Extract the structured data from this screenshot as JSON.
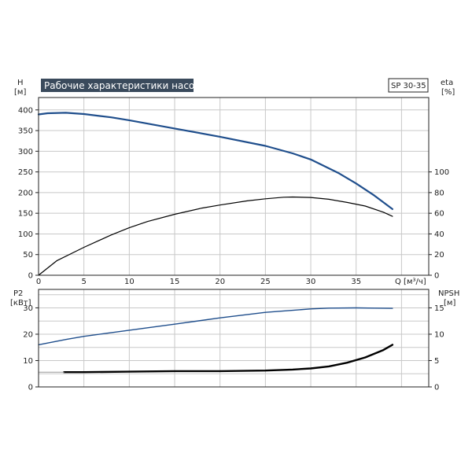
{
  "title_box": "Рабочие характеристики насоса",
  "model_label": "SP 30-35",
  "colors": {
    "blue": "#1f4e8c",
    "black": "#000000",
    "grid": "#c8c8c8",
    "title_bg": "#3a4a5c"
  },
  "chart_data": [
    {
      "type": "line",
      "name": "top-panel",
      "x_axis": {
        "label": "Q [м³/ч]",
        "range": [
          0,
          43
        ],
        "ticks": [
          0,
          5,
          10,
          15,
          20,
          25,
          30,
          35
        ]
      },
      "left_axis": {
        "label_line1": "H",
        "label_line2": "[м]",
        "range": [
          0,
          430
        ],
        "ticks": [
          0,
          50,
          100,
          150,
          200,
          250,
          300,
          350,
          400
        ]
      },
      "right_axis": {
        "label_line1": "eta",
        "label_line2": "[%]",
        "range": [
          0,
          172
        ],
        "ticks": [
          0,
          20,
          40,
          60,
          80,
          100
        ]
      },
      "grid": true,
      "series": [
        {
          "axis": "left",
          "color": "#1f4e8c",
          "width": 2.2,
          "x": [
            0,
            1,
            3,
            5,
            8,
            10,
            15,
            20,
            25,
            28,
            30,
            33,
            35,
            37,
            39
          ],
          "y": [
            389,
            392,
            393,
            390,
            382,
            375,
            355,
            335,
            313,
            295,
            280,
            248,
            222,
            193,
            160
          ]
        },
        {
          "axis": "right",
          "color": "#000000",
          "width": 1.2,
          "x": [
            0,
            2,
            5,
            8,
            10,
            12,
            15,
            18,
            20,
            23,
            25,
            27,
            28,
            30,
            32,
            34,
            36,
            38,
            39
          ],
          "y": [
            0,
            14,
            27,
            39,
            46,
            52,
            59,
            65,
            68,
            72,
            74,
            75.5,
            75.7,
            75.3,
            73.5,
            70.5,
            67,
            61,
            57
          ]
        }
      ]
    },
    {
      "type": "line",
      "name": "bottom-panel",
      "x_axis": {
        "range": [
          0,
          43
        ]
      },
      "left_axis": {
        "label_line1": "P2",
        "label_line2": "[кВт]",
        "range": [
          0,
          37
        ],
        "ticks": [
          0,
          10,
          20,
          30
        ]
      },
      "right_axis": {
        "label_line1": "NPSH",
        "label_line2": "[м]",
        "range": [
          0,
          18.5
        ],
        "ticks": [
          0,
          5,
          10,
          15
        ]
      },
      "grid": true,
      "series": [
        {
          "axis": "left",
          "color": "#1f4e8c",
          "width": 1.4,
          "x": [
            0,
            3,
            5,
            10,
            15,
            20,
            25,
            30,
            32,
            35,
            37,
            39
          ],
          "y": [
            16,
            18,
            19.2,
            21.5,
            23.8,
            26.2,
            28.3,
            29.6,
            29.9,
            30,
            29.9,
            29.8
          ]
        },
        {
          "axis": "right",
          "color": "#000000",
          "width": 2.4,
          "x": [
            2.8,
            5,
            10,
            15,
            20,
            25,
            28,
            30,
            32,
            34,
            36,
            38,
            39
          ],
          "y": [
            2.8,
            2.8,
            2.9,
            3.0,
            3.0,
            3.1,
            3.3,
            3.5,
            3.9,
            4.6,
            5.6,
            7.0,
            8.0
          ]
        },
        {
          "axis": "right",
          "color": "#999999",
          "width": 1,
          "x": [
            0,
            2.8
          ],
          "y": [
            2.8,
            2.8
          ]
        }
      ]
    }
  ]
}
